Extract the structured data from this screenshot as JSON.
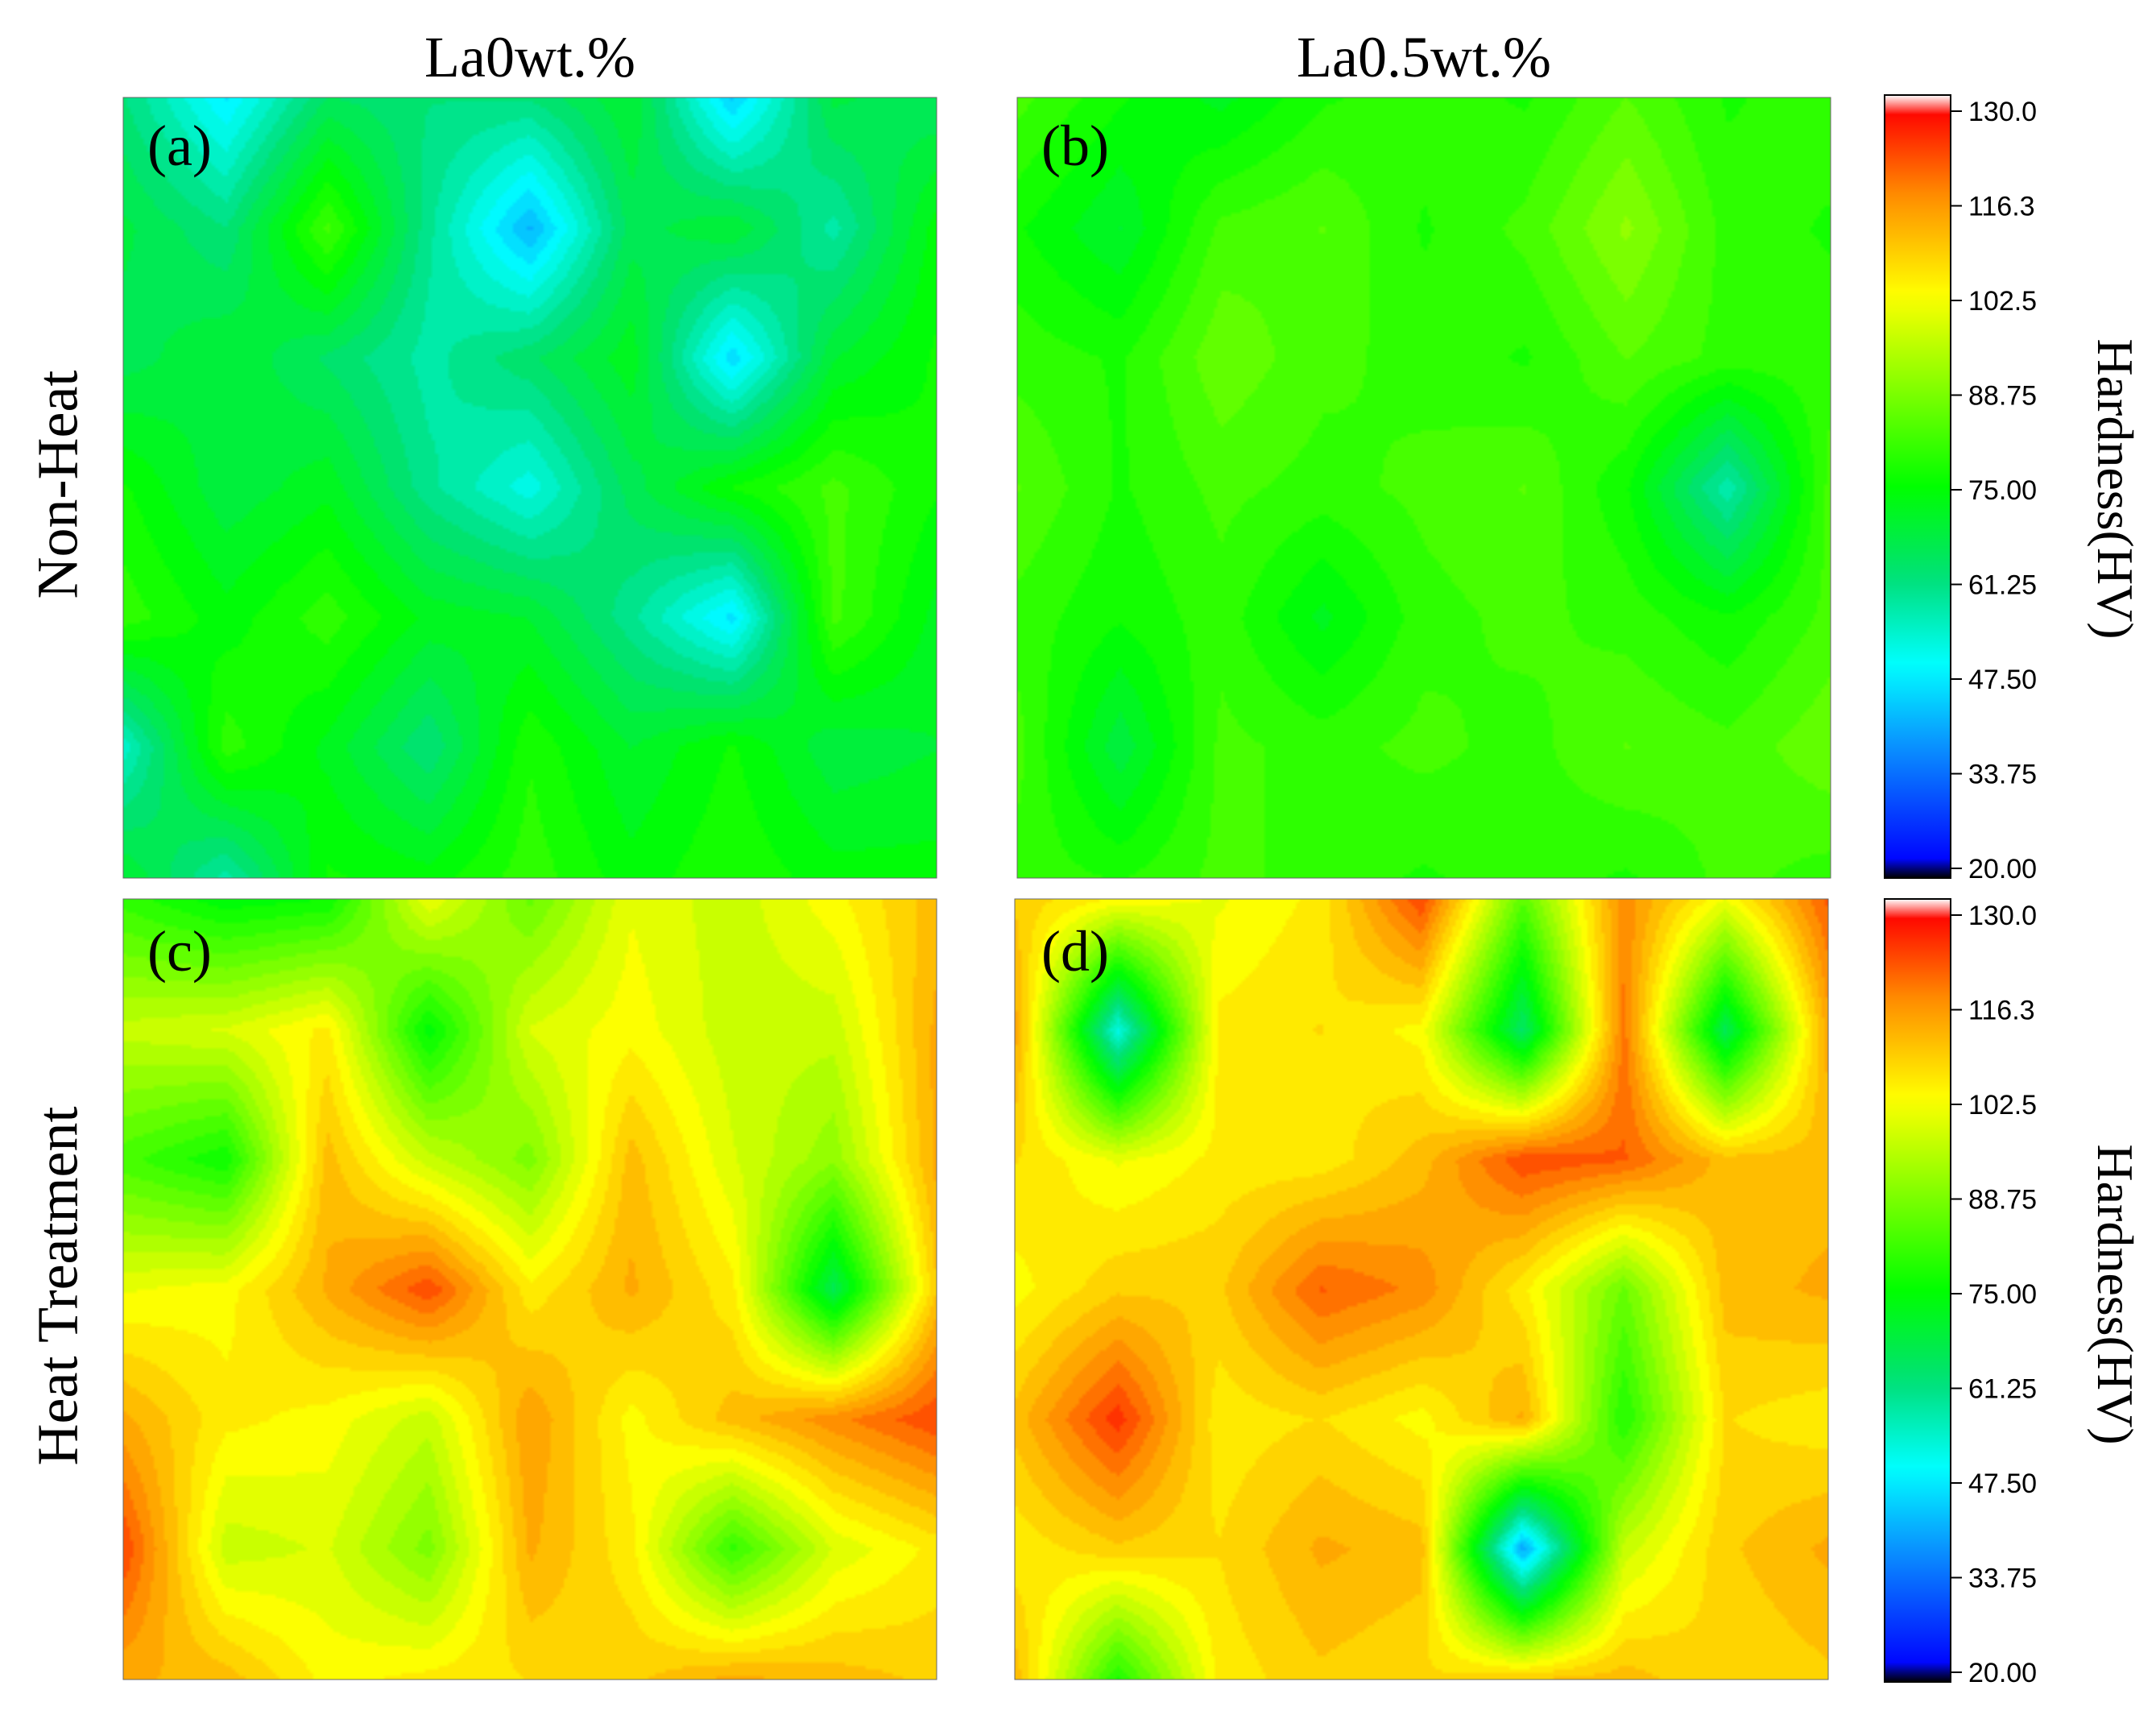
{
  "column_titles": [
    "La0wt.%",
    "La0.5wt.%"
  ],
  "row_titles": [
    "Non-Heat",
    "Heat Treatment"
  ],
  "colors": {
    "scale": [
      "#000000",
      "#0000ff",
      "#0a8cff",
      "#00ffff",
      "#00e07a",
      "#00ff00",
      "#ffff00",
      "#ff8c00",
      "#ff0000",
      "#ffffff"
    ]
  },
  "chart_data": [
    {
      "type": "heatmap",
      "panel": "(a)",
      "row": "Non-Heat",
      "column": "La0wt.%",
      "grid_rows": 7,
      "grid_cols": 9,
      "values": [
        [
          62,
          48,
          65,
          62,
          62,
          70,
          45,
          68,
          65
        ],
        [
          68,
          62,
          82,
          60,
          42,
          66,
          70,
          58,
          74
        ],
        [
          66,
          70,
          64,
          58,
          64,
          72,
          46,
          70,
          76
        ],
        [
          76,
          68,
          72,
          60,
          52,
          66,
          76,
          82,
          76
        ],
        [
          80,
          74,
          80,
          72,
          70,
          60,
          47,
          82,
          72
        ],
        [
          55,
          80,
          72,
          62,
          78,
          70,
          76,
          68,
          70
        ],
        [
          70,
          58,
          76,
          74,
          80,
          74,
          78,
          74,
          74
        ]
      ]
    },
    {
      "type": "heatmap",
      "panel": "(b)",
      "row": "Non-Heat",
      "column": "La0.5wt.%",
      "grid_rows": 7,
      "grid_cols": 9,
      "values": [
        [
          82,
          76,
          72,
          78,
          80,
          78,
          84,
          78,
          80
        ],
        [
          76,
          70,
          82,
          84,
          78,
          82,
          90,
          80,
          78
        ],
        [
          80,
          78,
          86,
          82,
          80,
          78,
          84,
          80,
          80
        ],
        [
          84,
          78,
          82,
          80,
          82,
          84,
          76,
          57,
          82
        ],
        [
          80,
          76,
          80,
          72,
          80,
          82,
          80,
          76,
          82
        ],
        [
          82,
          68,
          82,
          80,
          82,
          80,
          84,
          82,
          86
        ],
        [
          80,
          78,
          82,
          80,
          78,
          80,
          78,
          82,
          80
        ]
      ]
    },
    {
      "type": "heatmap",
      "panel": "(c)",
      "row": "Heat Treatment",
      "column": "La0wt.%",
      "grid_rows": 7,
      "grid_cols": 9,
      "values": [
        [
          80,
          74,
          76,
          100,
          86,
          100,
          96,
          102,
          110
        ],
        [
          96,
          98,
          104,
          74,
          98,
          102,
          96,
          96,
          112
        ],
        [
          82,
          76,
          110,
          96,
          88,
          110,
          98,
          90,
          112
        ],
        [
          100,
          102,
          112,
          122,
          104,
          112,
          104,
          66,
          108
        ],
        [
          112,
          104,
          102,
          96,
          114,
          102,
          110,
          116,
          122
        ],
        [
          122,
          96,
          98,
          88,
          112,
          104,
          80,
          98,
          104
        ],
        [
          112,
          110,
          102,
          104,
          106,
          108,
          112,
          110,
          108
        ]
      ]
    },
    {
      "type": "heatmap",
      "panel": "(d)",
      "row": "Heat Treatment",
      "column": "La0.5wt.%",
      "grid_rows": 7,
      "grid_cols": 9,
      "values": [
        [
          108,
          102,
          100,
          104,
          122,
          84,
          116,
          100,
          120
        ],
        [
          112,
          52,
          104,
          106,
          102,
          64,
          118,
          66,
          112
        ],
        [
          106,
          100,
          104,
          104,
          110,
          122,
          120,
          110,
          110
        ],
        [
          102,
          108,
          108,
          120,
          116,
          104,
          86,
          110,
          112
        ],
        [
          110,
          124,
          104,
          106,
          102,
          112,
          78,
          106,
          104
        ],
        [
          104,
          108,
          106,
          112,
          110,
          40,
          96,
          108,
          112
        ],
        [
          110,
          78,
          104,
          108,
          106,
          108,
          110,
          106,
          108
        ]
      ]
    }
  ],
  "colorbars": [
    {
      "label": "Hardness(HV)",
      "ticks": [
        "130.0",
        "116.3",
        "102.5",
        "88.75",
        "75.00",
        "61.25",
        "47.50",
        "33.75",
        "20.00"
      ],
      "range": [
        20,
        130
      ]
    },
    {
      "label": "Hardness(HV)",
      "ticks": [
        "130.0",
        "116.3",
        "102.5",
        "88.75",
        "75.00",
        "61.25",
        "47.50",
        "33.75",
        "20.00"
      ],
      "range": [
        20,
        130
      ]
    }
  ]
}
